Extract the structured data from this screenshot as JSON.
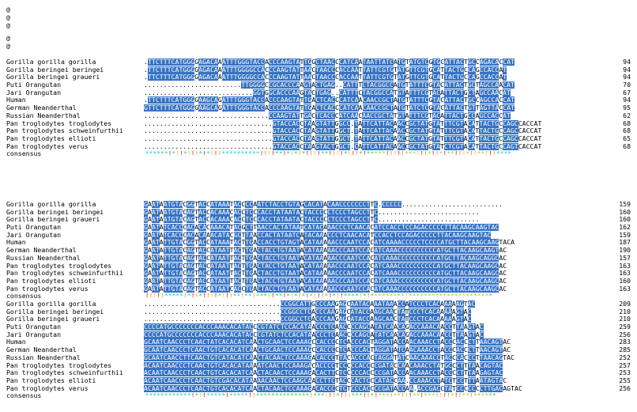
{
  "symbols": [
    "@",
    "@",
    "@",
    "@",
    "@"
  ],
  "blocks": [
    {
      "rows": [
        {
          "name": "Gorilla gorilla gorilla",
          "seq": ".TTCTTTCATGGGGAGACAAATTTGGGTACCACCCAAGTATTGGCTAACCCATCAATAATTATCATGTATGTCGTGCATTACTGCCAGACACCAT",
          "end": "94"
        },
        {
          "name": "Gorilla beringei beringei",
          "seq": ".TTCTTTCATGGGGAGACAAATTTGGGGCCACCCAAGTATTAACTAACCCACCAATTATTCGTGTATGTTCGTGCATTACTGCCAGCCACCAT",
          "end": "94"
        },
        {
          "name": "Gorilla beringei graueri",
          "seq": ".TTCTTTCATGGGGAGACAAATTTGGGGCCACCCAAGTATTAACTAACCCACCAATTATTCGTGTATGTTCGTGCATTACTGCCAGCCACCAT",
          "end": "94"
        },
        {
          "name": "Puti Orangutan",
          "seq": ".........................TTGGGGCCGCACCCAAGTACTGAG..CATTTCTACGGCCATGTATTTCGTACATTACTGCTAGCCAACAT",
          "end": "70"
        },
        {
          "name": "Jari Orangutan",
          "seq": "............................GGTGGCACCCAAGTACTGAG..CATTTCTACGGCCATGTATTTCGTACATTACTGCTAGCCAACAT",
          "end": "67"
        },
        {
          "name": "Human",
          "seq": ".TTCTTTCATGGGGAAGCAGATTTGGGTACCACCCAAGTATTGACTCACCCATCAACAACCGCTATGTATTTCGTACATTACTGCCAGCCACCAT",
          "end": "94"
        },
        {
          "name": "German Neanderthal",
          "seq": "GTTCTTTCATGGGGAAGCAGATTTGGGTACCACCCAAGTATTGACTCACCCATCAACAACCGCTATGTATCTCGTACATTACTGTTAGTTACCAT",
          "end": "95"
        },
        {
          "name": "Russian Neanderthal",
          "seq": "................................CCAAGTATTGACTCACCCATCAACAACCGCTATGTATTTCGTACATTACTGCCAGCCACCAT",
          "end": "62"
        },
        {
          "name": "Pan troglodytes troglodytes",
          "seq": ".................................GTACCACCTAAGTATTGGCC.TATTCATTACAACCGCTATGTATTTCGTACATTACTGCCAGCCACCAT",
          "end": "68"
        },
        {
          "name": "Pan troglodytes schweinfurthii",
          "seq": ".................................GTACCACCTAAGTATTGGCT.TATTCATTACAACCGCTATGTATTTCGTACATTACTGCCAGCCACCAT",
          "end": "68"
        },
        {
          "name": "Pan troglodytes ellioti",
          "seq": ".................................GTACCACCTAAGTATTGGCT.TATTCATTACAACCGCTATGTATTTCGTACATTACTGCCAGCCACCAT",
          "end": "65"
        },
        {
          "name": "Pan troglodytes verus",
          "seq": ".................................GTACCACCTAAGTACTGGCT.CATTCATTACAACCGCTATGTATCTCGTACATTACTGCCAGTCACCAT",
          "end": "68"
        }
      ],
      "consensus_label": "consensus",
      "consensus": "******!*!!*!!!*!*!!!**********!!!!**!*!*!*!!!!**!!!!*!!!*!*****!!!!!***!!!*!!*!**!!!*!!**!!!****"
    },
    {
      "rows": [
        {
          "name": "Gorilla gorilla gorilla",
          "seq": "GAATAATGTACGGTACCATAAATACCCCAATCTACCTGTAGCACATACAACCCCCCCTTC.CCCCC..........................",
          "end": "159"
        },
        {
          "name": "Gorilla beringei beringei",
          "seq": "GAATAATGTACAGTACCACAAACACCTCCCACCTATAATACTACCCCCTCCCTAGCCTTC..........................",
          "end": "160"
        },
        {
          "name": "Gorilla beringei graueri",
          "seq": "GAATAATGTACAGTACCACAAACACCTCCCACCTATAATACTACCCCCTCCCTAGCCTTC..........................",
          "end": "160"
        },
        {
          "name": "Puti Orangutan",
          "seq": "GAATATCACCCACACACAAACATACGCTTAACCACTATAATCATACAAACCCTCAACACATCCACCTCCAGACCCCCTTACAAGCAAGTAC",
          "end": "162"
        },
        {
          "name": "Jari Orangutan",
          "seq": "GAATATCACCCACACAAACATACGCTTAACCACTATAATCATACAAACCCTCAACACATCCACCTCCAGACCCCCTTACAAGCAAGTAC",
          "end": "159"
        },
        {
          "name": "Human",
          "seq": "GAATATTGTACGGTACCATAAATACTTGACCACCTGTAGTACATAAAAACCCAATCCACATCAAAACCCCCTCCCCATGCTTACAAGCAAGTACA",
          "end": "187"
        },
        {
          "name": "German Neanderthal",
          "seq": "GAATATTGTACAGTACCATAATTACTTGACTACCTGTAATACATAAAAACCCAATCCACATCAAACCCCCCCCCCATGCTTACAAGCAAGTAC",
          "end": "190"
        },
        {
          "name": "Russian Neanderthal",
          "seq": "GAATATTGTACAGTACCATAATTACTTGACTACCTGTAATACATAAAAACCCAATCCACATCAAACCCCCCCCCCATGCTTACAAGCAGGCAC",
          "end": "157"
        },
        {
          "name": "Pan troglodytes troglodytes",
          "seq": "GAATATTGTACAGTACCATAATTACTTGACTACCTGTAATACATAAAAACCCAATCCACATCAAACCCCCCCCCCATGCTTACAAGCAAGCAC",
          "end": "163"
        },
        {
          "name": "Pan troglodytes schweinfurthii",
          "seq": "GAATATTGTACAGTACCATAATTACTTGACTACCTGTAATACATAAAAACCCAATCCACATCAAACCCCCCCCCCATGCTTACAAGCAAGCAC",
          "end": "163"
        },
        {
          "name": "Pan troglodytes ellioti",
          "seq": "GAATATTGTACAGTACCATAATTACTTGACTACCTGTAATACATAAAAACCCAATCCACATCAAACCCCCCCCCCATGCTTACAAGCAAGCAC",
          "end": "160"
        },
        {
          "name": "Pan troglodytes verus",
          "seq": "GAATATTGTACAGTACCATAATCACCTGACTACCTGTAATACATAAAAACCCAATCCACATCAAACCCCCCCCCCATGCTTACAAGCAAGCAC",
          "end": "163"
        }
      ],
      "consensus_label": "consensus",
      "consensus": "!!!!!*****!*!!*!!!!*!!!**!**!***!!**!*!*!*!*!!!*!*!!****!*!*********!**************!*******"
    },
    {
      "rows": [
        {
          "name": "Gorilla gorilla gorilla",
          "seq": "...................................CCGGCATTGCCCAAGAGCAATACAAATAAACCATCCCTCACAAAAAGTAC",
          "end": "209"
        },
        {
          "name": "Gorilla beringei beringei",
          "seq": "...................................CCGGCCTCACCCAAGAGCATACCAAGCAACTATCCCTCACAAAAAGTAC",
          "end": "210"
        },
        {
          "name": "Gorilla beringei graueri",
          "seq": "...................................CCGGCCTCACCCAAGAGCATACCAAGCAACTATCCCTCACAAAAAGTAC",
          "end": "210"
        },
        {
          "name": "Puti Orangutan",
          "seq": "CCCCATGCCCCCCCACCCAAACACATACCCGTATCTCCACATAACCCTCAACCCCAGCATATCAACAGACCAAACAACCTTAAGTAC",
          "end": "259"
        },
        {
          "name": "Jari Orangutan",
          "seq": "CCCCATGCCCCCCCACCCAAACACATACCCGTATCTCCACATAACCCTCAACCCCAGCATATCAACAGACCAAACAACCTTAAGTAC",
          "end": "256"
        },
        {
          "name": "Human",
          "seq": "GCAATCAACCCTCAACTATCACACATCAACTGCAACTCCAAAGCCACCCCTCACCCACTAGGATACCAACAAACCTACCCACCCTTAACAGTAC",
          "end": "283"
        },
        {
          "name": "German Neanderthal",
          "seq": "GCAATCAACCCTCAACTGTCACACATCAACTGCAACTCCAAAGCCACCCCTCACCCACTAGGATATCAACAAACCTACCCACCCTTAACAGTAC",
          "end": "285"
        },
        {
          "name": "Russian Neanderthal",
          "seq": "GCAATCAACCTTCAACTGTCATACATCAACTACAACTCCAAAGACACCCTTACACCCACTAGGATATCAACAAACCTACCCACCCTTAACAGTAC",
          "end": "252"
        },
        {
          "name": "Pan troglodytes troglodytes",
          "seq": "ACAATCAACCCTCAACTGTCACACATAAAATCAACTCCAAAGACACCCCTCCCCCACCCCGATACCAACAAACCTATGCCCTTTAACAGTAC",
          "end": "257"
        },
        {
          "name": "Pan troglodytes schweinfurthii",
          "seq": "ACAATCAACCCTCAACTGTCACACATCAACTACAACTCCAAAGACACTTCTCCCCCACCCCGATACCAACAAACCTACCCCTTTAAGAGTAC",
          "end": "253"
        },
        {
          "name": "Pan troglodytes ellioti",
          "seq": "ACAATCAACCCTCAACTGTCGACACATAAAACAACTCCAAGCAACCTTCTACCCACTCCCATACCAA.CCAAACCTATCTCCTTTAATAGTAC",
          "end": "255"
        },
        {
          "name": "Pan troglodytes verus",
          "seq": "ACAATCAACCCTCAACTGTCACACATCAACTACAACTCCAAAGACACCCCTCTCCCACCCCGATACCAA.ACCGACCTATCCCCCCCTTGACAGTAC",
          "end": "256"
        }
      ],
      "consensus_label": "consensus",
      "consensus": "************!*!!*****!*****!!**************!***!!!*!!!***!!*!***!**!!!**!***!!!!*!!**!******"
    }
  ]
}
